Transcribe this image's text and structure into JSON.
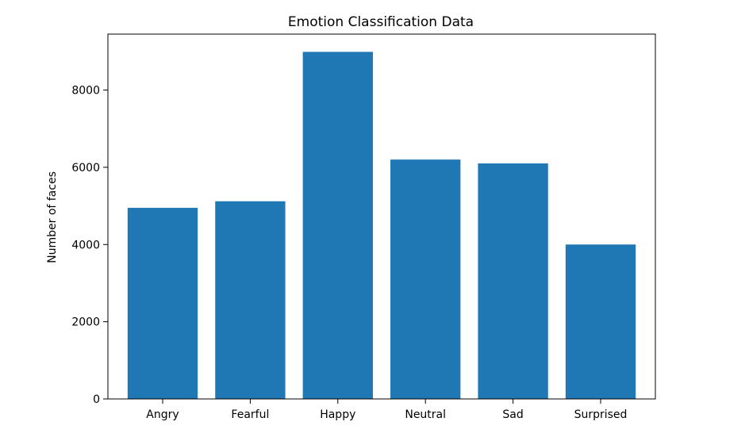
{
  "chart_data": {
    "type": "bar",
    "title": "Emotion Classification Data",
    "xlabel": "",
    "ylabel": "Number of faces",
    "categories": [
      "Angry",
      "Fearful",
      "Happy",
      "Neutral",
      "Sad",
      "Surprised"
    ],
    "values": [
      4950,
      5120,
      8990,
      6200,
      6100,
      4000
    ],
    "ylim": [
      0,
      9450
    ],
    "yticks": [
      0,
      2000,
      4000,
      6000,
      8000
    ],
    "grid": false,
    "legend": "none",
    "colors": {
      "bar": "#1f77b4",
      "axis": "#000000"
    }
  }
}
